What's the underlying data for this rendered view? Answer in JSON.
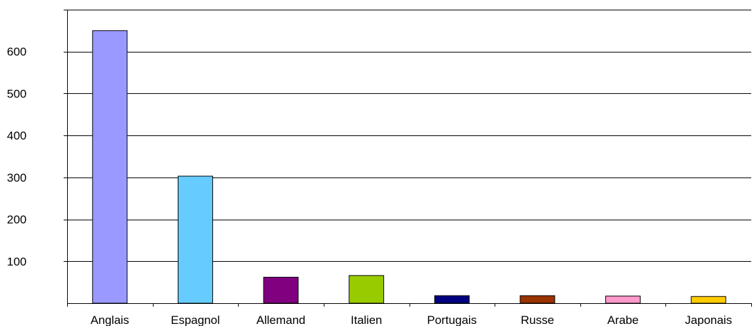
{
  "chart_data": {
    "type": "bar",
    "categories": [
      "Anglais",
      "Espagnol",
      "Allemand",
      "Italien",
      "Portugais",
      "Russe",
      "Arabe",
      "Japonais"
    ],
    "values": [
      650,
      303,
      62,
      66,
      18,
      18,
      17,
      16
    ],
    "colors": [
      "#9999ff",
      "#66ccff",
      "#800080",
      "#99cc00",
      "#000080",
      "#993300",
      "#ff99cc",
      "#ffcc00"
    ],
    "yticks": [
      100,
      200,
      300,
      400,
      500,
      600
    ],
    "ylim": [
      0,
      700
    ],
    "grid": true,
    "legend": "none"
  }
}
